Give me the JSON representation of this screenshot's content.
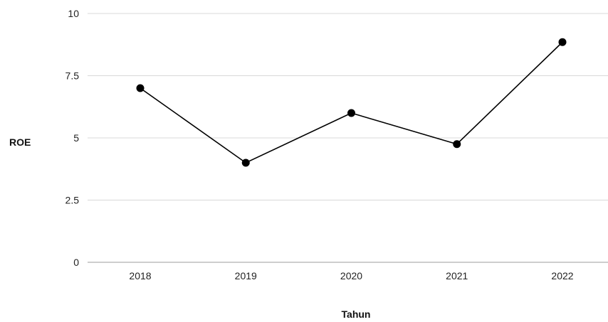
{
  "chart_data": {
    "type": "line",
    "categories": [
      "2018",
      "2019",
      "2020",
      "2021",
      "2022"
    ],
    "series": [
      {
        "values": [
          7.0,
          4.0,
          6.0,
          4.75,
          8.85
        ]
      }
    ],
    "title": "",
    "xlabel": "Tahun",
    "ylabel": "ROE",
    "ylim": [
      0,
      10
    ],
    "yticks": [
      "0",
      "2.5",
      "5",
      "7.5",
      "10"
    ],
    "grid": true,
    "legend": "none",
    "colors": {
      "line": "#000000",
      "grid": "#d9d9d9",
      "point": "#000000"
    }
  }
}
